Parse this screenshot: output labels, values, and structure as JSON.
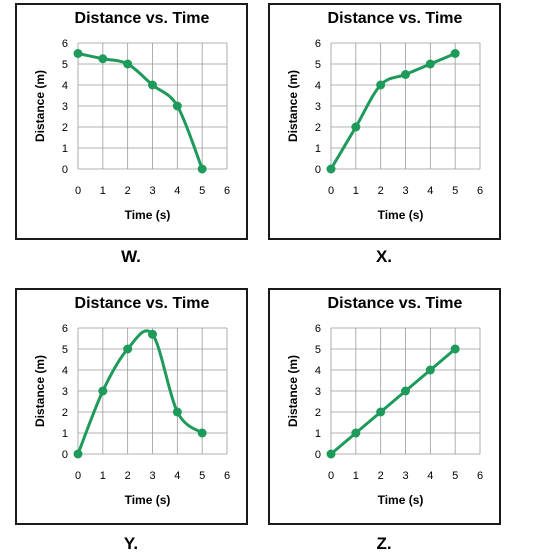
{
  "chart_data": [
    {
      "panel_label": "W.",
      "type": "line",
      "title": "Distance vs. Time",
      "xlabel": "Time (s)",
      "ylabel": "Distance (m)",
      "xlim": [
        0,
        6
      ],
      "ylim": [
        0,
        6
      ],
      "xticks": [
        0,
        1,
        2,
        3,
        4,
        5,
        6
      ],
      "yticks": [
        0,
        1,
        2,
        3,
        4,
        5,
        6
      ],
      "grid": true,
      "color": "#1e9b5a",
      "x": [
        0,
        1,
        2,
        3,
        4,
        5
      ],
      "y": [
        5.5,
        5.25,
        5,
        4,
        3,
        0
      ]
    },
    {
      "panel_label": "X.",
      "type": "line",
      "title": "Distance vs. Time",
      "xlabel": "Time (s)",
      "ylabel": "Distance (m)",
      "xlim": [
        0,
        6
      ],
      "ylim": [
        0,
        6
      ],
      "xticks": [
        0,
        1,
        2,
        3,
        4,
        5,
        6
      ],
      "yticks": [
        0,
        1,
        2,
        3,
        4,
        5,
        6
      ],
      "grid": true,
      "color": "#1e9b5a",
      "x": [
        0,
        1,
        2,
        3,
        4,
        5
      ],
      "y": [
        0,
        2,
        4,
        4.5,
        5,
        5.5
      ]
    },
    {
      "panel_label": "Y.",
      "type": "line",
      "title": "Distance vs. Time",
      "xlabel": "Time (s)",
      "ylabel": "Distance (m)",
      "xlim": [
        0,
        6
      ],
      "ylim": [
        0,
        6
      ],
      "xticks": [
        0,
        1,
        2,
        3,
        4,
        5,
        6
      ],
      "yticks": [
        0,
        1,
        2,
        3,
        4,
        5,
        6
      ],
      "grid": true,
      "color": "#1e9b5a",
      "x": [
        0,
        1,
        2,
        3,
        4,
        5
      ],
      "y": [
        0,
        3,
        5,
        5.7,
        2,
        1
      ]
    },
    {
      "panel_label": "Z.",
      "type": "line",
      "title": "Distance vs. Time",
      "xlabel": "Time (s)",
      "ylabel": "Distance (m)",
      "xlim": [
        0,
        6
      ],
      "ylim": [
        0,
        6
      ],
      "xticks": [
        0,
        1,
        2,
        3,
        4,
        5,
        6
      ],
      "yticks": [
        0,
        1,
        2,
        3,
        4,
        5,
        6
      ],
      "grid": true,
      "color": "#1e9b5a",
      "x": [
        0,
        1,
        2,
        3,
        4,
        5
      ],
      "y": [
        0,
        1,
        2,
        3,
        4,
        5
      ]
    }
  ]
}
